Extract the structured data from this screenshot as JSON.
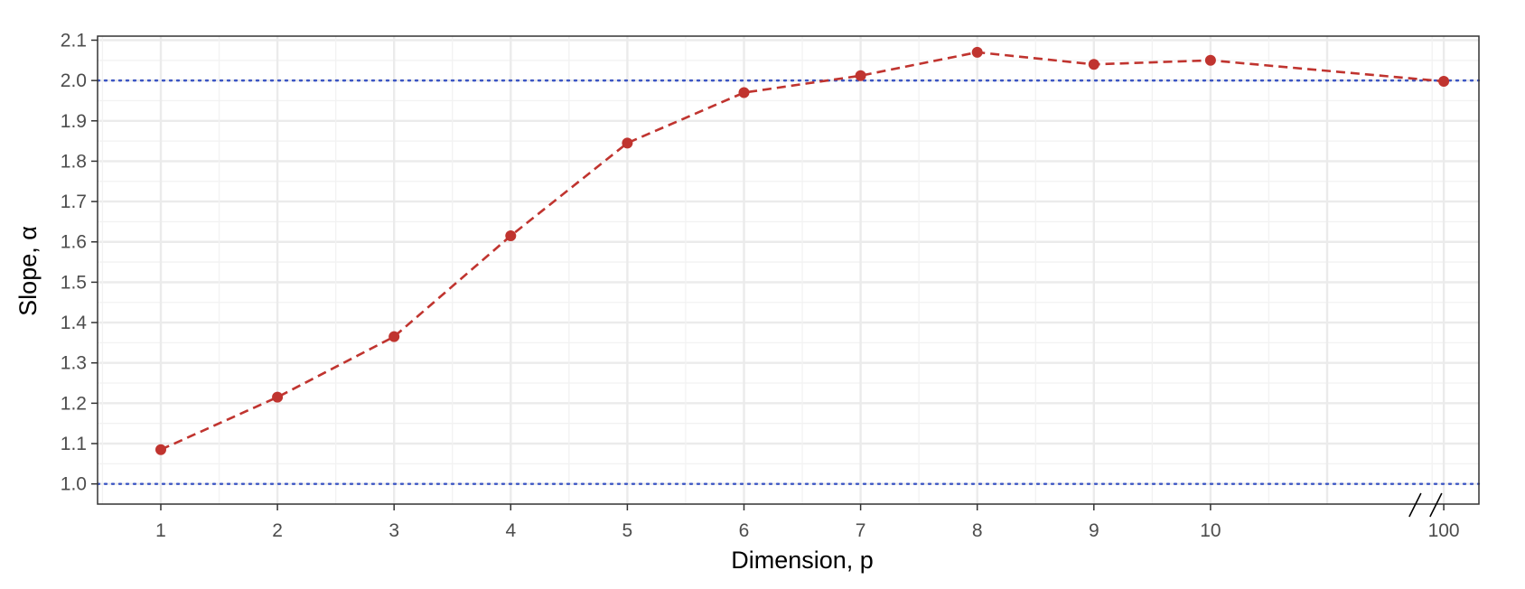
{
  "chart_data": {
    "type": "line",
    "xlabel": "Dimension, p",
    "ylabel": "Slope, α",
    "x_tick_labels": [
      "1",
      "2",
      "3",
      "4",
      "5",
      "6",
      "7",
      "8",
      "9",
      "10",
      "100"
    ],
    "y_tick_labels": [
      "1.0",
      "1.1",
      "1.2",
      "1.3",
      "1.4",
      "1.5",
      "1.6",
      "1.7",
      "1.8",
      "1.9",
      "2.0",
      "2.1"
    ],
    "ylim": [
      0.95,
      2.11
    ],
    "axis_break": "between 10 and 100",
    "grid": true,
    "series": [
      {
        "x": [
          1,
          2,
          3,
          4,
          5,
          6,
          7,
          8,
          9,
          10,
          100
        ],
        "y": [
          1.085,
          1.215,
          1.365,
          1.615,
          1.845,
          1.97,
          2.012,
          2.07,
          2.04,
          2.05,
          1.998
        ],
        "color": "#c0342f",
        "line_style": "dashed",
        "markers": true
      }
    ],
    "reference_lines": [
      {
        "y": 1.0,
        "color": "#3b55c4",
        "line_style": "dotted"
      },
      {
        "y": 2.0,
        "color": "#3b55c4",
        "line_style": "dotted"
      }
    ]
  }
}
